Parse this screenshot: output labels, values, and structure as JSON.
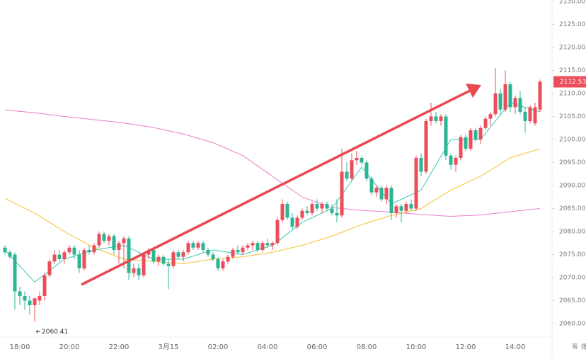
{
  "chart_data": {
    "type": "candlestick",
    "categories": [
      null,
      null,
      null,
      "18:00",
      null,
      null,
      null,
      null,
      null,
      null,
      null,
      null,
      null,
      "20:00",
      null,
      null,
      null,
      null,
      null,
      null,
      null,
      null,
      null,
      "22:00",
      null,
      null,
      null,
      null,
      null,
      null,
      null,
      null,
      null,
      "3月15",
      null,
      null,
      null,
      null,
      null,
      null,
      null,
      null,
      null,
      "02:00",
      null,
      null,
      null,
      null,
      null,
      null,
      null,
      null,
      null,
      "04:00",
      null,
      null,
      null,
      null,
      null,
      null,
      null,
      null,
      null,
      "06:00",
      null,
      null,
      null,
      null,
      null,
      null,
      null,
      null,
      null,
      "08:00",
      null,
      null,
      null,
      null,
      null,
      null,
      null,
      null,
      null,
      "10:00",
      null,
      null,
      null,
      null,
      null,
      null,
      null,
      null,
      null,
      "12:00",
      null,
      null,
      null,
      null,
      null,
      null,
      null,
      null,
      null,
      "14:00",
      null,
      null,
      null,
      null,
      null
    ],
    "open": [
      2076.5,
      2075.5,
      2075,
      2067,
      2066,
      2065,
      2064,
      2065,
      2066,
      2070.5,
      2073.5,
      2075,
      2074,
      2075.5,
      2076.5,
      2075,
      2072,
      2076,
      2075.5,
      2077,
      2079.5,
      2078,
      2079,
      2076,
      2077.5,
      2078.5,
      2071,
      2072,
      2070.5,
      2075,
      2076,
      2073.5,
      2074.5,
      2073,
      2072.5,
      2075.5,
      2074.5,
      2075.5,
      2077.5,
      2076.5,
      2077.5,
      2076,
      2075,
      2074,
      2072,
      2073.5,
      2074.5,
      2076,
      2075.5,
      2076.5,
      2077,
      2077.5,
      2076,
      2077.5,
      2077,
      2077.5,
      2082.5,
      2086,
      2083,
      2081,
      2083,
      2084.5,
      2084,
      2086,
      2085,
      2086,
      2085,
      2084,
      2083.5,
      2093,
      2091.5,
      2095.5,
      2096,
      2095,
      2091.5,
      2088.5,
      2089.5,
      2087,
      2089.5,
      2084,
      2085.5,
      2084.5,
      2086,
      2085,
      2096,
      2093,
      2104,
      2105,
      2104,
      2105,
      2096.5,
      2094.5,
      2096,
      2100.5,
      2098,
      2102,
      2100,
      2102.5,
      2104.5,
      2105.5,
      2110,
      2106.5,
      2112,
      2107,
      2109,
      2106,
      2104,
      2103.5,
      2106.5
    ],
    "high": [
      2077,
      2076,
      2075.5,
      2068,
      2067,
      2066,
      2065,
      2067,
      2071,
      2074,
      2076,
      2076,
      2076,
      2077,
      2077,
      2076,
      2076.5,
      2077,
      2077.5,
      2080,
      2080,
      2079.5,
      2079.5,
      2078,
      2079,
      2079,
      2073,
      2073,
      2075.5,
      2076.5,
      2076.5,
      2075,
      2075,
      2074,
      2076,
      2076,
      2076,
      2078,
      2078,
      2078,
      2078,
      2076.5,
      2075.5,
      2074.5,
      2074,
      2075,
      2076.5,
      2077,
      2077,
      2077.5,
      2078,
      2078,
      2078,
      2078.5,
      2078,
      2083,
      2087,
      2086.5,
      2084,
      2083.5,
      2085,
      2085.5,
      2086.5,
      2087,
      2086.5,
      2086.5,
      2086,
      2087,
      2098,
      2095,
      2097,
      2097.5,
      2096.5,
      2095.5,
      2092,
      2090,
      2090,
      2090,
      2090,
      2086,
      2086,
      2086.5,
      2087,
      2096.5,
      2097,
      2104.5,
      2108,
      2106,
      2105.5,
      2105.5,
      2097,
      2096.5,
      2101,
      2101,
      2102.5,
      2102.5,
      2103,
      2105,
      2106,
      2115.5,
      2111,
      2115,
      2112.5,
      2109.5,
      2110.5,
      2107,
      2107.5,
      2108,
      2113
    ],
    "low": [
      2075,
      2074,
      2063,
      2064,
      2063,
      2062,
      2060.41,
      2064,
      2065,
      2070,
      2073,
      2073.5,
      2073,
      2075,
      2074,
      2071,
      2071.5,
      2075,
      2075,
      2076.5,
      2077.5,
      2077,
      2075,
      2073,
      2072,
      2069.5,
      2070,
      2069.5,
      2070,
      2074,
      2073,
      2072.5,
      2072.5,
      2067.5,
      2072,
      2074,
      2073.5,
      2075,
      2076,
      2076,
      2075.5,
      2074.5,
      2073.5,
      2071.5,
      2071.5,
      2073,
      2074,
      2075,
      2075,
      2076,
      2076,
      2075.5,
      2075.5,
      2076.5,
      2076,
      2077,
      2082,
      2082.5,
      2080.5,
      2080.5,
      2082.5,
      2083.5,
      2083.5,
      2084.5,
      2084,
      2084.5,
      2083.5,
      2082,
      2083,
      2091,
      2091,
      2094.5,
      2094.5,
      2091,
      2088,
      2087.5,
      2086.5,
      2086,
      2082.5,
      2083,
      2082,
      2084,
      2084.5,
      2084.5,
      2092,
      2092.5,
      2103,
      2103.5,
      2103,
      2095.5,
      2093.5,
      2093,
      2095.5,
      2097.5,
      2097.5,
      2099.5,
      2099,
      2102,
      2103,
      2105,
      2105.5,
      2106,
      2106,
      2105.5,
      2105.5,
      2101.5,
      2103.5,
      2103,
      2106
    ],
    "close": [
      2075.5,
      2074.5,
      2067,
      2066,
      2065,
      2064,
      2065.5,
      2066,
      2070.5,
      2073.5,
      2075,
      2074,
      2075.5,
      2076.5,
      2075,
      2072,
      2076,
      2075.5,
      2077,
      2079.5,
      2078,
      2079,
      2076,
      2077.5,
      2078.5,
      2071,
      2072,
      2070.5,
      2075,
      2076,
      2073.5,
      2074.5,
      2073,
      2072.5,
      2075.5,
      2074.5,
      2075.5,
      2077.5,
      2076.5,
      2077.5,
      2076,
      2075,
      2074,
      2072,
      2073.5,
      2074.5,
      2076,
      2075.5,
      2076.5,
      2077,
      2077.5,
      2076,
      2077.5,
      2077,
      2077.5,
      2082.5,
      2086,
      2083,
      2081,
      2083,
      2084.5,
      2084,
      2086,
      2085,
      2086,
      2085,
      2084,
      2083.5,
      2093,
      2091.5,
      2095.5,
      2096,
      2095,
      2091.5,
      2088.5,
      2089.5,
      2087,
      2089.5,
      2084,
      2085.5,
      2084.5,
      2086,
      2085,
      2096,
      2093,
      2104,
      2105,
      2104,
      2105,
      2096.5,
      2094.5,
      2096,
      2100.5,
      2098,
      2102,
      2100,
      2102.5,
      2104.5,
      2105.5,
      2110,
      2106.5,
      2112,
      2107,
      2109,
      2106,
      2104,
      2107,
      2107,
      2112.53
    ],
    "up_color": "#ec4d5a",
    "down_color": "#2db494",
    "lines": [
      {
        "color": "#e67fc8",
        "x": [
          0,
          6,
          12,
          18,
          24,
          30,
          36,
          42,
          48,
          54,
          60,
          66,
          72,
          78,
          84,
          90,
          96,
          102,
          108
        ],
        "values": [
          2106.4,
          2105.8,
          2105,
          2104.3,
          2103.6,
          2102.6,
          2101.2,
          2099.3,
          2096.5,
          2092,
          2087.5,
          2085.2,
          2084.6,
          2084.2,
          2083.7,
          2083.3,
          2083.6,
          2084.3,
          2085
        ]
      },
      {
        "color": "#f2c230",
        "x": [
          0,
          6,
          12,
          18,
          24,
          30,
          36,
          42,
          48,
          54,
          60,
          66,
          72,
          78,
          84,
          90,
          96,
          102,
          108
        ],
        "values": [
          2087.2,
          2084,
          2080,
          2076.5,
          2074,
          2073.5,
          2073,
          2074,
          2074.5,
          2075.5,
          2077,
          2079,
          2081.5,
          2083.5,
          2085,
          2089,
          2092,
          2096,
          2098
        ]
      },
      {
        "color": "#3cc7b0",
        "x": [
          0,
          6,
          12,
          18,
          24,
          30,
          36,
          42,
          48,
          54,
          60,
          66,
          72,
          78,
          84,
          90,
          96,
          102,
          108
        ],
        "values": [
          2076,
          2069,
          2074,
          2076,
          2077,
          2074,
          2074,
          2076,
          2075,
          2077,
          2082,
          2085,
          2094,
          2086,
          2089,
          2100,
          2100,
          2108,
          2106
        ]
      }
    ],
    "ylim": [
      2058,
      2130.3
    ],
    "yticks": [
      {
        "value": 2060,
        "label": "2060.00"
      },
      {
        "value": 2065,
        "label": "2065.00"
      },
      {
        "value": 2070,
        "label": "2070.00"
      },
      {
        "value": 2075,
        "label": "2075.00"
      },
      {
        "value": 2080,
        "label": "2080.00"
      },
      {
        "value": 2085,
        "label": "2085.00"
      },
      {
        "value": 2090,
        "label": "2090.00"
      },
      {
        "value": 2095,
        "label": "2095.00"
      },
      {
        "value": 2100,
        "label": "2100.00"
      },
      {
        "value": 2105,
        "label": "2105.00"
      },
      {
        "value": 2110,
        "label": "2110.00"
      },
      {
        "value": 2115,
        "label": "2115.00"
      },
      {
        "value": 2120,
        "label": "2120.00"
      },
      {
        "value": 2125,
        "label": "2125.00"
      },
      {
        "value": 2130,
        "label": "2130.00"
      }
    ],
    "grid": false
  },
  "toolbar": [
    "筹",
    "爆"
  ]
}
